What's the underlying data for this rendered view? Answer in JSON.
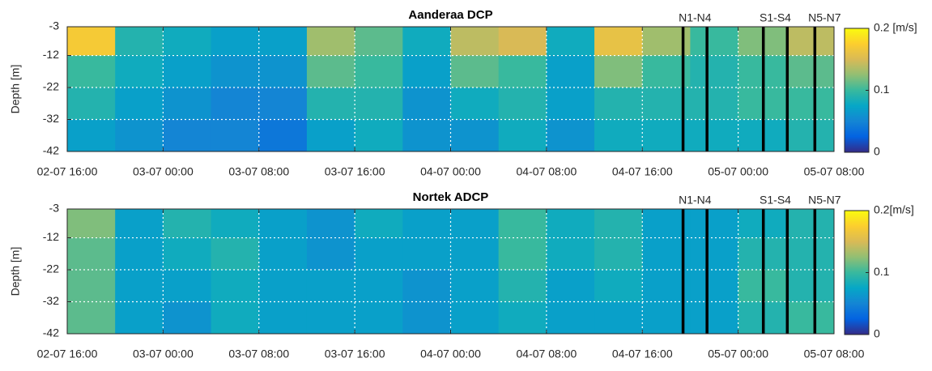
{
  "chart_data": [
    {
      "type": "heatmap",
      "title": "Aanderaa DCP",
      "ylabel": "Depth [m]",
      "x_bins": [
        0,
        4,
        8,
        12,
        16,
        20,
        24,
        28,
        32,
        36,
        40,
        44,
        48,
        52,
        56,
        60,
        64
      ],
      "y_bins": [
        -3,
        -12,
        -22,
        -32,
        -42
      ],
      "z": [
        [
          0.17,
          0.09,
          0.08,
          0.07,
          0.07,
          0.13,
          0.11,
          0.08,
          0.14,
          0.15,
          0.08,
          0.16,
          0.13,
          0.1,
          0.12,
          0.14
        ],
        [
          0.1,
          0.08,
          0.07,
          0.06,
          0.06,
          0.11,
          0.1,
          0.07,
          0.11,
          0.1,
          0.07,
          0.12,
          0.1,
          0.09,
          0.1,
          0.11
        ],
        [
          0.09,
          0.07,
          0.06,
          0.05,
          0.05,
          0.09,
          0.09,
          0.06,
          0.08,
          0.09,
          0.07,
          0.09,
          0.09,
          0.09,
          0.1,
          0.1
        ],
        [
          0.07,
          0.06,
          0.05,
          0.05,
          0.04,
          0.07,
          0.08,
          0.06,
          0.06,
          0.08,
          0.06,
          0.08,
          0.08,
          0.08,
          0.08,
          0.09
        ]
      ],
      "xlim": [
        0,
        64
      ],
      "xticks": [
        {
          "value": 0,
          "label": "02-07 16:00"
        },
        {
          "value": 8,
          "label": "03-07 00:00"
        },
        {
          "value": 16,
          "label": "03-07 08:00"
        },
        {
          "value": 24,
          "label": "03-07 16:00"
        },
        {
          "value": 32,
          "label": "04-07 00:00"
        },
        {
          "value": 40,
          "label": "04-07 08:00"
        },
        {
          "value": 48,
          "label": "04-07 16:00"
        },
        {
          "value": 56,
          "label": "05-07 00:00"
        },
        {
          "value": 64,
          "label": "05-07 08:00"
        }
      ],
      "ylim": [
        -42,
        -3
      ],
      "yticks": [
        -3,
        -12,
        -22,
        -32,
        -42
      ],
      "grid": true,
      "clim": [
        0,
        0.2
      ],
      "cticks": [
        0,
        0.1,
        {
          "value": 0.2,
          "label": "0.2 [m/s]"
        }
      ],
      "colormap": [
        "#352a87",
        "#0363e1",
        "#1485d4",
        "#06a7c6",
        "#38b99e",
        "#92bf73",
        "#d9ba56",
        "#fcce2e",
        "#f9fb0e"
      ],
      "markers": [
        {
          "label": "N1-N4",
          "x": [
            51.4,
            53.4
          ]
        },
        {
          "label": "S1-S4",
          "x": [
            58.1,
            60.1
          ]
        },
        {
          "label": "N5-N7",
          "x": [
            62.4
          ]
        }
      ]
    },
    {
      "type": "heatmap",
      "title": "Nortek ADCP",
      "ylabel": "Depth [m]",
      "x_bins": [
        0,
        4,
        8,
        12,
        16,
        20,
        24,
        28,
        32,
        36,
        40,
        44,
        48,
        52,
        56,
        60,
        64
      ],
      "y_bins": [
        -3,
        -12,
        -22,
        -32,
        -42
      ],
      "z": [
        [
          0.12,
          0.07,
          0.09,
          0.08,
          0.07,
          0.06,
          0.08,
          0.07,
          0.07,
          0.1,
          0.08,
          0.09,
          0.07,
          0.07,
          0.08,
          0.09
        ],
        [
          0.11,
          0.07,
          0.08,
          0.09,
          0.07,
          0.06,
          0.07,
          0.07,
          0.07,
          0.1,
          0.08,
          0.09,
          0.07,
          0.07,
          0.09,
          0.09
        ],
        [
          0.11,
          0.07,
          0.07,
          0.08,
          0.07,
          0.07,
          0.07,
          0.06,
          0.07,
          0.09,
          0.07,
          0.08,
          0.07,
          0.07,
          0.1,
          0.09
        ],
        [
          0.11,
          0.07,
          0.06,
          0.08,
          0.07,
          0.07,
          0.07,
          0.06,
          0.07,
          0.08,
          0.07,
          0.07,
          0.07,
          0.07,
          0.09,
          0.1
        ]
      ],
      "xlim": [
        0,
        64
      ],
      "xticks": [
        {
          "value": 0,
          "label": "02-07 16:00"
        },
        {
          "value": 8,
          "label": "03-07 00:00"
        },
        {
          "value": 16,
          "label": "03-07 08:00"
        },
        {
          "value": 24,
          "label": "03-07 16:00"
        },
        {
          "value": 32,
          "label": "04-07 00:00"
        },
        {
          "value": 40,
          "label": "04-07 08:00"
        },
        {
          "value": 48,
          "label": "04-07 16:00"
        },
        {
          "value": 56,
          "label": "05-07 00:00"
        },
        {
          "value": 64,
          "label": "05-07 08:00"
        }
      ],
      "ylim": [
        -42,
        -3
      ],
      "yticks": [
        -3,
        -12,
        -22,
        -32,
        -42
      ],
      "grid": true,
      "clim": [
        0,
        0.2
      ],
      "cticks": [
        0,
        0.1,
        {
          "value": 0.2,
          "label": "0.2[m/s]"
        }
      ],
      "colormap": [
        "#352a87",
        "#0363e1",
        "#1485d4",
        "#06a7c6",
        "#38b99e",
        "#92bf73",
        "#d9ba56",
        "#fcce2e",
        "#f9fb0e"
      ],
      "markers": [
        {
          "label": "N1-N4",
          "x": [
            51.4,
            53.4
          ]
        },
        {
          "label": "S1-S4",
          "x": [
            58.1,
            60.1
          ]
        },
        {
          "label": "N5-N7",
          "x": [
            62.4
          ]
        }
      ]
    }
  ]
}
